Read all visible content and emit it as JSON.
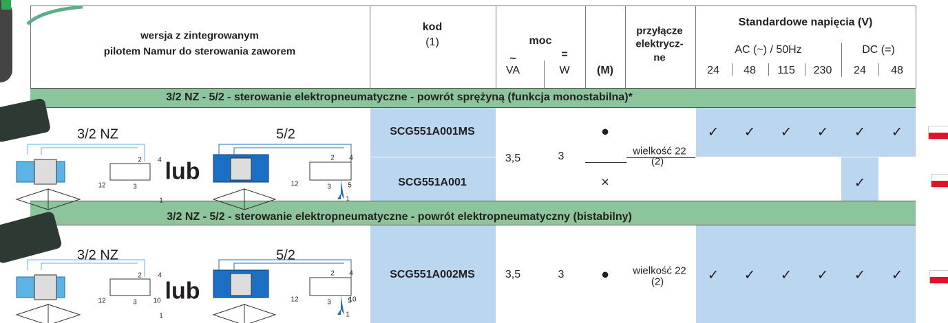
{
  "header": {
    "version": [
      "wersja z zintegrowanym",
      "pilotem Namur do sterowania zaworem"
    ],
    "code": "kod",
    "code_note": "(1)",
    "power": "moc",
    "power_ac_symbol": "~",
    "power_dc_symbol": "=",
    "power_ac_unit": "VA",
    "power_dc_unit": "W",
    "manual": "(M)",
    "connection": [
      "przyłącze",
      "elektrycz-",
      "ne"
    ],
    "voltages_title": "Standardowe napięcia (V)",
    "ac": "AC (~) / 50Hz",
    "dc": "DC (=)",
    "voltages": [
      "24",
      "48",
      "115",
      "230",
      "24",
      "48"
    ]
  },
  "sections": [
    {
      "title": "3/2 NZ - 5/2 - sterowanie elektropneumatyczne - powrót sprężyną (funkcja monostabilna)*",
      "diagram": {
        "left": "3/2 NZ",
        "right": "5/2",
        "or": "lub",
        "ports_left": [
          "2",
          "4",
          "12",
          "3",
          "1"
        ],
        "ports_right": [
          "2",
          "4",
          "12",
          "3",
          "5",
          "1"
        ]
      },
      "power_va": "3,5",
      "power_w": "3",
      "connection": "wielkość 22",
      "connection_note": "(2)",
      "rows": [
        {
          "code": "SCG551A001MS",
          "manual": "●",
          "checks": [
            "✓",
            "✓",
            "✓",
            "✓",
            "✓",
            "✓"
          ]
        },
        {
          "code": "SCG551A001",
          "manual": "×",
          "checks": [
            null,
            null,
            null,
            null,
            "✓",
            null
          ]
        }
      ]
    },
    {
      "title": "3/2 NZ - 5/2 - sterowanie elektropneumatyczne - powrót elektropneumatyczny (bistabilny)",
      "diagram": {
        "left": "3/2 NZ",
        "right": "5/2",
        "or": "lub",
        "ports_left": [
          "2",
          "4",
          "12",
          "3",
          "1",
          "10"
        ],
        "ports_right": [
          "2",
          "4",
          "12",
          "3",
          "5",
          "1",
          "10"
        ]
      },
      "power_va": "3,5",
      "power_w": "3",
      "connection": "wielkość 22",
      "connection_note": "(2)",
      "rows": [
        {
          "code": "SCG551A002MS",
          "manual": "●",
          "checks": [
            "✓",
            "✓",
            "✓",
            "✓",
            "✓",
            "✓"
          ]
        }
      ]
    }
  ]
}
